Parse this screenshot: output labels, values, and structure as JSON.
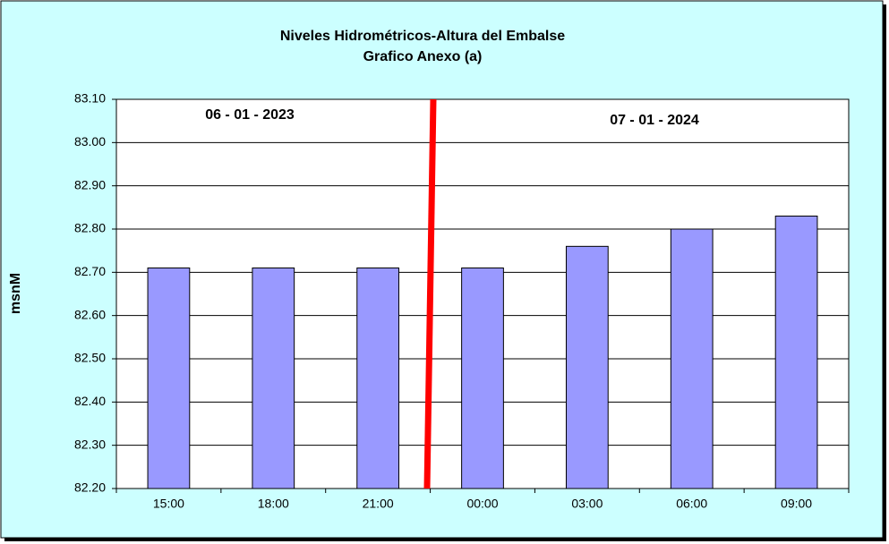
{
  "chart_data": {
    "type": "bar",
    "title": "Niveles Hidrométricos-Altura del Embalse",
    "subtitle": "Grafico Anexo (a)",
    "y_label": "msnM",
    "annotations": [
      "06 - 01 - 2023",
      "07 - 01 - 2024"
    ],
    "categories": [
      "15:00",
      "18:00",
      "21:00",
      "00:00",
      "03:00",
      "06:00",
      "09:00"
    ],
    "values": [
      82.71,
      82.71,
      82.71,
      82.71,
      82.76,
      82.8,
      82.83
    ],
    "color": "#9999ff",
    "ylim": [
      82.2,
      83.1
    ],
    "yticks": [
      {
        "value": 82.2,
        "label": "82.20"
      },
      {
        "value": 82.3,
        "label": "82.30"
      },
      {
        "value": 82.4,
        "label": "82.40"
      },
      {
        "value": 82.5,
        "label": "82.50"
      },
      {
        "value": 82.6,
        "label": "82.60"
      },
      {
        "value": 82.7,
        "label": "82.70"
      },
      {
        "value": 82.8,
        "label": "82.80"
      },
      {
        "value": 82.9,
        "label": "82.90"
      },
      {
        "value": 83.0,
        "label": "83.00"
      },
      {
        "value": 83.1,
        "label": "83.10"
      }
    ],
    "grid": true
  }
}
